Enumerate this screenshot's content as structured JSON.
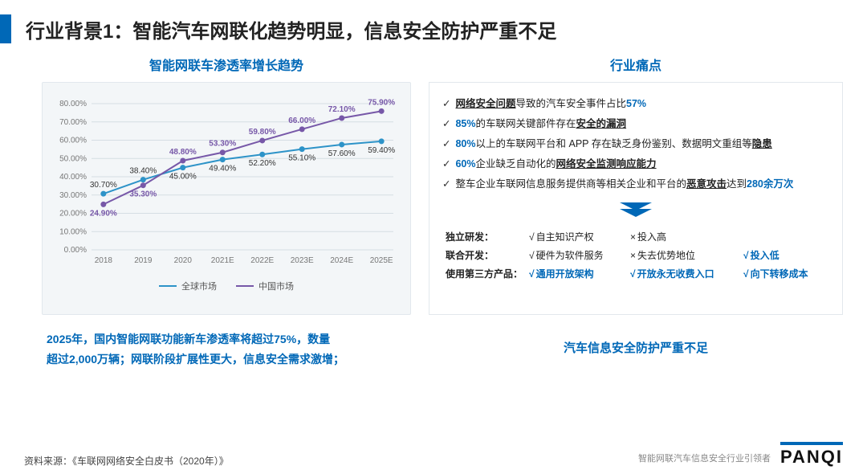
{
  "colors": {
    "accent": "#0068b7",
    "series_global": "#2d93c8",
    "series_china": "#7758a8",
    "panel_bg": "#f3f6f8",
    "grid": "#d5dde3"
  },
  "title": "行业背景1：智能汽车网联化趋势明显，信息安全防护严重不足",
  "chart": {
    "title": "智能网联车渗透率增长趋势",
    "type": "line",
    "categories": [
      "2018",
      "2019",
      "2020",
      "2021E",
      "2022E",
      "2023E",
      "2024E",
      "2025E"
    ],
    "y_ticks": [
      "0.00%",
      "10.00%",
      "20.00%",
      "30.00%",
      "40.00%",
      "50.00%",
      "60.00%",
      "70.00%",
      "80.00%"
    ],
    "series": [
      {
        "name": "全球市场",
        "color": "#2d93c8",
        "values": [
          30.7,
          38.4,
          45.0,
          49.4,
          52.2,
          55.1,
          57.6,
          59.4
        ],
        "labels": [
          "30.70%",
          "38.40%",
          "45.00%",
          "49.40%",
          "52.20%",
          "55.10%",
          "57.60%",
          "59.40%"
        ]
      },
      {
        "name": "中国市场",
        "color": "#7758a8",
        "values": [
          24.9,
          35.3,
          48.8,
          53.3,
          59.8,
          66.0,
          72.1,
          75.9
        ],
        "labels": [
          "24.90%",
          "35.30%",
          "48.80%",
          "53.30%",
          "59.80%",
          "66.00%",
          "72.10%",
          "75.90%"
        ]
      }
    ]
  },
  "summary_left": {
    "line1": "2025年，国内智能网联功能新车渗透率将超过75%，数量",
    "line2": "超过2,000万辆；网联阶段扩展性更大，信息安全需求激增；"
  },
  "right": {
    "title": "行业痛点",
    "items": [
      {
        "pre": "",
        "u": "网络安全问题",
        "mid": "导致的汽车安全事件占比",
        "blue": "57%",
        "post": ""
      },
      {
        "pre": "",
        "blue_first": "85%",
        "mid2": "的车联网关键部件存在",
        "u2": "安全的漏洞",
        "tail": ""
      },
      {
        "pre": "",
        "blue_first": "80%",
        "mid2": "以上的车联网平台和 APP 存在缺乏身份鉴别、数据明文重组等",
        "u2": "隐患",
        "tail": ""
      },
      {
        "pre": "",
        "blue_first": "60%",
        "mid2": "企业缺乏自动化的",
        "u2": "网络安全监测响应能力",
        "tail": ""
      },
      {
        "pre": "整车企业车联网信息服务提供商等相关企业和平台的",
        "u": "恶意攻击",
        "mid": "达到",
        "blue": "280余万次",
        "post": ""
      }
    ],
    "comparison": {
      "rows": [
        {
          "label": "独立研发：",
          "cells": [
            {
              "text": "自主知识产权",
              "state": "ok",
              "highlight": false
            },
            {
              "text": "投入高",
              "state": "bad",
              "highlight": false
            },
            {
              "text": "",
              "state": "none",
              "highlight": false
            }
          ]
        },
        {
          "label": "联合开发：",
          "cells": [
            {
              "text": "硬件为软件服务",
              "state": "ok",
              "highlight": false
            },
            {
              "text": "失去优势地位",
              "state": "bad",
              "highlight": false
            },
            {
              "text": "投入低",
              "state": "ok",
              "highlight": true
            }
          ]
        },
        {
          "label": "使用第三方产品：",
          "cells": [
            {
              "text": "通用开放架构",
              "state": "ok",
              "highlight": true
            },
            {
              "text": "开放永无收费入口",
              "state": "ok",
              "highlight": true
            },
            {
              "text": "向下转移成本",
              "state": "ok",
              "highlight": true
            }
          ]
        }
      ]
    },
    "summary": "汽车信息安全防护严重不足"
  },
  "footer": {
    "source": "资料来源：《车联网网络安全白皮书（2020年）》",
    "tag": "智能网联汽车信息安全行业引领者",
    "logo": "PANQI"
  }
}
